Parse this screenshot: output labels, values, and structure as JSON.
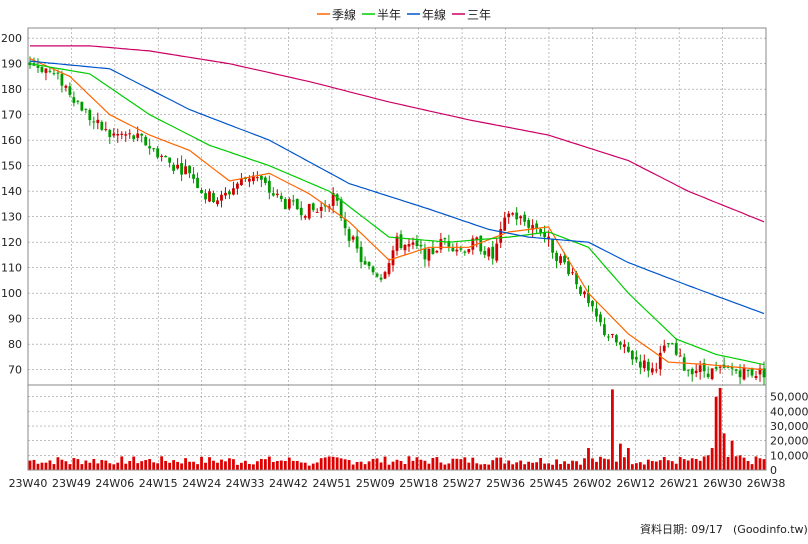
{
  "legend": [
    {
      "label": "季線",
      "color": "#ff6600"
    },
    {
      "label": "半年",
      "color": "#00cc00"
    },
    {
      "label": "年線",
      "color": "#0055cc"
    },
    {
      "label": "三年",
      "color": "#cc0066"
    }
  ],
  "footer": {
    "label": "資料日期: 09/17",
    "source": "(Goodinfo.tw)"
  },
  "colors": {
    "up": "#cc0000",
    "down": "#009900",
    "volume": "#dd0000",
    "grid": "#999999",
    "frame": "#888888"
  },
  "chart_data": [
    {
      "type": "candlestick",
      "title": "",
      "x_ticks": [
        "23W40",
        "23W49",
        "24W06",
        "24W15",
        "24W24",
        "24W33",
        "24W42",
        "24W51",
        "25W09",
        "25W18",
        "25W27",
        "25W36",
        "25W45",
        "26W02",
        "26W12",
        "26W21",
        "26W30",
        "26W38"
      ],
      "y_ticks": [
        70,
        80,
        90,
        100,
        110,
        120,
        130,
        140,
        150,
        160,
        170,
        180,
        190,
        200
      ],
      "ylim": [
        64,
        204
      ],
      "close_anchors": [
        [
          0,
          190
        ],
        [
          4,
          188
        ],
        [
          8,
          183
        ],
        [
          12,
          175
        ],
        [
          16,
          167
        ],
        [
          20,
          162
        ],
        [
          24,
          162
        ],
        [
          28,
          160
        ],
        [
          32,
          155
        ],
        [
          36,
          150
        ],
        [
          40,
          148
        ],
        [
          44,
          138
        ],
        [
          48,
          137
        ],
        [
          52,
          143
        ],
        [
          56,
          147
        ],
        [
          60,
          140
        ],
        [
          64,
          135
        ],
        [
          68,
          133
        ],
        [
          72,
          132
        ],
        [
          76,
          138
        ],
        [
          80,
          123
        ],
        [
          84,
          110
        ],
        [
          88,
          107
        ],
        [
          92,
          120
        ],
        [
          96,
          118
        ],
        [
          100,
          115
        ],
        [
          104,
          121
        ],
        [
          108,
          117
        ],
        [
          112,
          120
        ],
        [
          116,
          114
        ],
        [
          120,
          132
        ],
        [
          124,
          128
        ],
        [
          128,
          125
        ],
        [
          132,
          115
        ],
        [
          136,
          108
        ],
        [
          140,
          95
        ],
        [
          144,
          85
        ],
        [
          148,
          79
        ],
        [
          152,
          74
        ],
        [
          156,
          70
        ],
        [
          160,
          80
        ],
        [
          164,
          71
        ],
        [
          168,
          70
        ],
        [
          172,
          69
        ],
        [
          176,
          70
        ],
        [
          180,
          69
        ],
        [
          184,
          69
        ]
      ],
      "series": [
        {
          "name": "季線",
          "anchors": [
            [
              0,
              192
            ],
            [
              10,
              185
            ],
            [
              20,
              170
            ],
            [
              30,
              162
            ],
            [
              40,
              156
            ],
            [
              50,
              144
            ],
            [
              60,
              147
            ],
            [
              70,
              139
            ],
            [
              80,
              128
            ],
            [
              90,
              113
            ],
            [
              100,
              118
            ],
            [
              110,
              118
            ],
            [
              120,
              124
            ],
            [
              130,
              126
            ],
            [
              140,
              100
            ],
            [
              150,
              84
            ],
            [
              160,
              73
            ],
            [
              170,
              72
            ],
            [
              184,
              70
            ]
          ]
        },
        {
          "name": "半年",
          "anchors": [
            [
              0,
              190
            ],
            [
              15,
              186
            ],
            [
              30,
              170
            ],
            [
              45,
              158
            ],
            [
              60,
              150
            ],
            [
              75,
              140
            ],
            [
              90,
              122
            ],
            [
              105,
              120
            ],
            [
              120,
              122
            ],
            [
              130,
              124
            ],
            [
              140,
              118
            ],
            [
              150,
              100
            ],
            [
              162,
              82
            ],
            [
              172,
              76
            ],
            [
              184,
              72
            ]
          ]
        },
        {
          "name": "年線",
          "anchors": [
            [
              0,
              191
            ],
            [
              20,
              188
            ],
            [
              40,
              172
            ],
            [
              60,
              160
            ],
            [
              80,
              143
            ],
            [
              100,
              133
            ],
            [
              115,
              125
            ],
            [
              125,
              122
            ],
            [
              140,
              120
            ],
            [
              150,
              112
            ],
            [
              165,
              103
            ],
            [
              184,
              92
            ]
          ]
        },
        {
          "name": "三年",
          "anchors": [
            [
              0,
              197
            ],
            [
              15,
              197
            ],
            [
              30,
              195
            ],
            [
              50,
              190
            ],
            [
              70,
              183
            ],
            [
              90,
              175
            ],
            [
              110,
              168
            ],
            [
              130,
              162
            ],
            [
              150,
              152
            ],
            [
              165,
              140
            ],
            [
              184,
              128
            ]
          ]
        }
      ]
    },
    {
      "type": "bar",
      "title": "",
      "y_ticks": [
        "0",
        "10,000",
        "20,000",
        "30,000",
        "40,000",
        "50,000"
      ],
      "ylim": [
        0,
        58000
      ],
      "base_volume": 6500,
      "spikes": [
        [
          4,
          5000
        ],
        [
          10,
          4000
        ],
        [
          22,
          5000
        ],
        [
          42,
          4000
        ],
        [
          52,
          3500
        ],
        [
          70,
          3000
        ],
        [
          84,
          4000
        ],
        [
          110,
          5000
        ],
        [
          140,
          15000
        ],
        [
          146,
          55000
        ],
        [
          148,
          18000
        ],
        [
          150,
          15000
        ],
        [
          166,
          8000
        ],
        [
          170,
          10000
        ],
        [
          171,
          15000
        ],
        [
          172,
          50000
        ],
        [
          173,
          56000
        ],
        [
          174,
          25000
        ],
        [
          176,
          20000
        ],
        [
          178,
          10000
        ],
        [
          183,
          8000
        ]
      ]
    }
  ]
}
